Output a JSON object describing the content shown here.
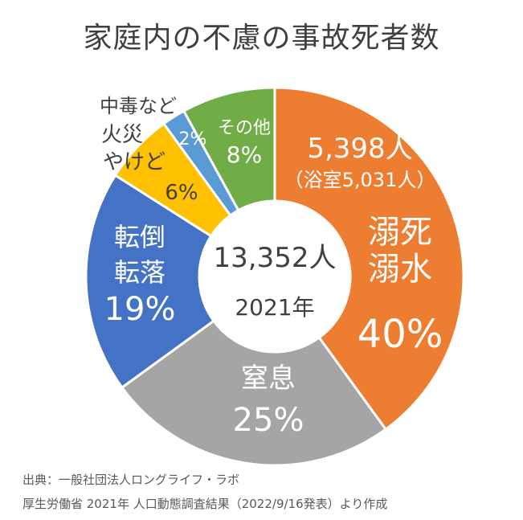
{
  "chart_data": {
    "type": "pie",
    "subtype": "donut",
    "title": "家庭内の不慮の事故死者数",
    "center": {
      "total": "13,352人",
      "year": "2021年"
    },
    "slices": [
      {
        "key": "drowning",
        "lines": [
          "溺死",
          "溺水"
        ],
        "percent_label": "40%",
        "value": 40,
        "color": "#ED7D31",
        "note_lines": [
          "5,398人",
          "（浴室5,031人）"
        ]
      },
      {
        "key": "choking",
        "lines": [
          "窒息"
        ],
        "percent_label": "25%",
        "value": 25,
        "color": "#A5A5A5"
      },
      {
        "key": "falls",
        "lines": [
          "転倒",
          "転落"
        ],
        "percent_label": "19%",
        "value": 19,
        "color": "#4472C4"
      },
      {
        "key": "fire-burns",
        "lines": [
          "火災",
          "やけど"
        ],
        "percent_label": "6%",
        "value": 6,
        "color": "#FFC000"
      },
      {
        "key": "poisoning",
        "lines": [
          "中毒など"
        ],
        "percent_label": "2%",
        "value": 2,
        "color": "#5B9BD5"
      },
      {
        "key": "other",
        "lines": [
          "その他"
        ],
        "percent_label": "8%",
        "value": 8,
        "color": "#70AD47"
      }
    ]
  },
  "source": {
    "line1": "出典：一般社団法人ロングライフ・ラボ",
    "line2": "厚生労働省 2021年 人口動態調査結果（2022/9/16発表）より作成"
  }
}
